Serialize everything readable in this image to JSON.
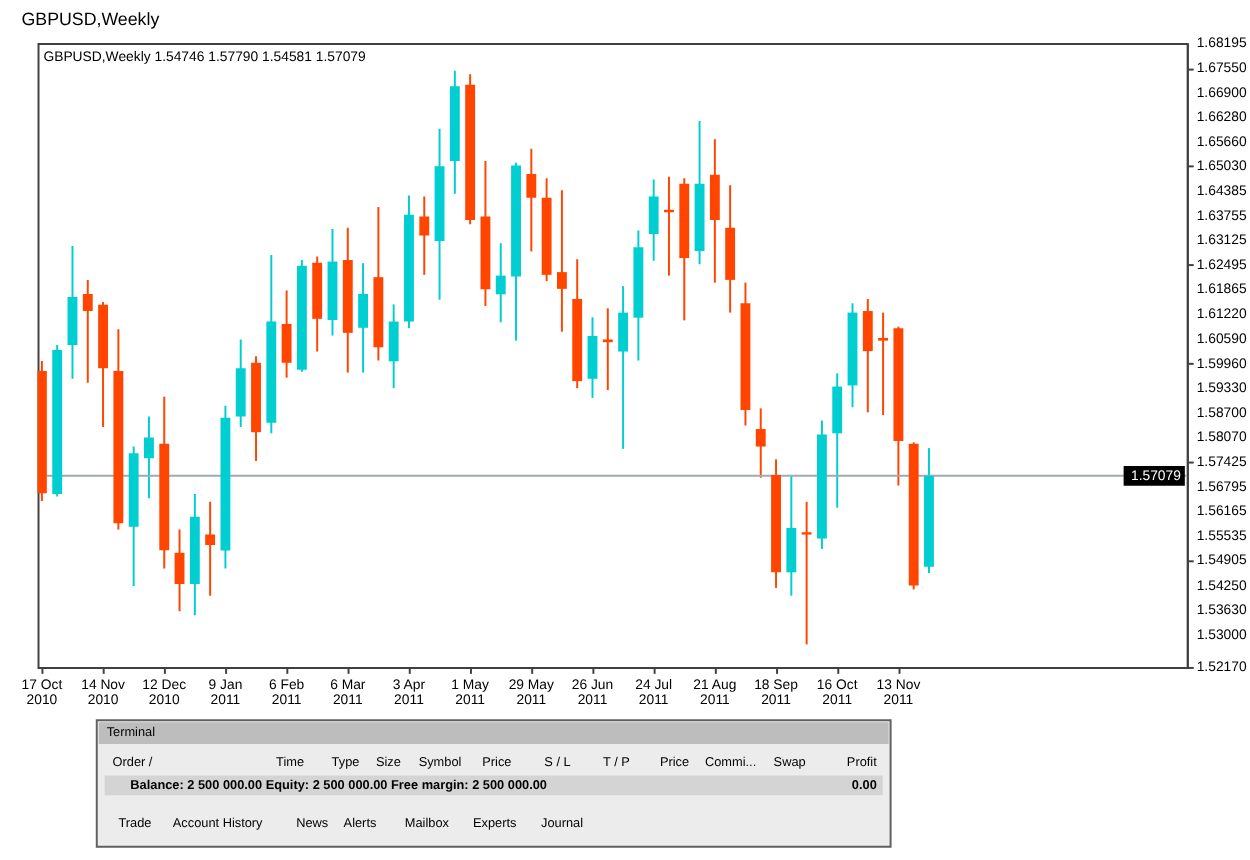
{
  "chart_data": {
    "type": "candlestick",
    "title": "GBPUSD,Weekly",
    "subtitle": "GBPUSD,Weekly  1.54746 1.57790 1.54581 1.57079",
    "x": [
      "2010-10-17",
      "2010-10-24",
      "2010-10-31",
      "2010-11-07",
      "2010-11-14",
      "2010-11-21",
      "2010-11-28",
      "2010-12-05",
      "2010-12-12",
      "2010-12-19",
      "2010-12-26",
      "2011-01-02",
      "2011-01-09",
      "2011-01-16",
      "2011-01-23",
      "2011-01-30",
      "2011-02-06",
      "2011-02-13",
      "2011-02-20",
      "2011-02-27",
      "2011-03-06",
      "2011-03-13",
      "2011-03-20",
      "2011-03-27",
      "2011-04-03",
      "2011-04-10",
      "2011-04-17",
      "2011-04-24",
      "2011-05-01",
      "2011-05-08",
      "2011-05-15",
      "2011-05-22",
      "2011-05-29",
      "2011-06-05",
      "2011-06-12",
      "2011-06-19",
      "2011-06-26",
      "2011-07-03",
      "2011-07-10",
      "2011-07-17",
      "2011-07-24",
      "2011-07-31",
      "2011-08-07",
      "2011-08-14",
      "2011-08-21",
      "2011-08-28",
      "2011-09-04",
      "2011-09-11",
      "2011-09-18",
      "2011-09-25",
      "2011-10-02",
      "2011-10-09",
      "2011-10-16",
      "2011-10-23",
      "2011-10-30",
      "2011-11-06",
      "2011-11-13",
      "2011-11-20",
      "2011-11-27"
    ],
    "ohlc": [
      [
        1.5977,
        1.6003,
        1.5643,
        1.5663
      ],
      [
        1.5661,
        1.6044,
        1.5655,
        1.6031
      ],
      [
        1.6044,
        1.6298,
        1.5957,
        1.6167
      ],
      [
        1.6175,
        1.6211,
        1.5947,
        1.6131
      ],
      [
        1.6147,
        1.6154,
        1.5833,
        1.5984
      ],
      [
        1.5977,
        1.6084,
        1.557,
        1.5586
      ],
      [
        1.5577,
        1.5783,
        1.5425,
        1.5766
      ],
      [
        1.5753,
        1.586,
        1.565,
        1.5806
      ],
      [
        1.579,
        1.5911,
        1.547,
        1.5517
      ],
      [
        1.551,
        1.557,
        1.536,
        1.543
      ],
      [
        1.543,
        1.5661,
        1.535,
        1.5603
      ],
      [
        1.5557,
        1.5641,
        1.54,
        1.553
      ],
      [
        1.5516,
        1.5888,
        1.547,
        1.5857
      ],
      [
        1.586,
        1.6058,
        1.5833,
        1.5984
      ],
      [
        1.5998,
        1.6015,
        1.5746,
        1.582
      ],
      [
        1.5844,
        1.6275,
        1.5817,
        1.6104
      ],
      [
        1.6098,
        1.6184,
        1.596,
        1.5998
      ],
      [
        1.598,
        1.6262,
        1.5975,
        1.6247
      ],
      [
        1.6255,
        1.6271,
        1.6027,
        1.6111
      ],
      [
        1.6108,
        1.6342,
        1.6068,
        1.6258
      ],
      [
        1.6262,
        1.6345,
        1.5973,
        1.6075
      ],
      [
        1.6088,
        1.6254,
        1.5973,
        1.6175
      ],
      [
        1.6218,
        1.6398,
        1.6004,
        1.6038
      ],
      [
        1.6002,
        1.6148,
        1.5933,
        1.6104
      ],
      [
        1.6104,
        1.6428,
        1.6087,
        1.6378
      ],
      [
        1.6374,
        1.6425,
        1.6224,
        1.6325
      ],
      [
        1.6311,
        1.6599,
        1.616,
        1.6503
      ],
      [
        1.6516,
        1.6748,
        1.6432,
        1.6708
      ],
      [
        1.6712,
        1.6739,
        1.6354,
        1.6365
      ],
      [
        1.6374,
        1.6516,
        1.6144,
        1.6187
      ],
      [
        1.6174,
        1.6305,
        1.6102,
        1.6222
      ],
      [
        1.622,
        1.6512,
        1.6055,
        1.6505
      ],
      [
        1.6483,
        1.6548,
        1.6284,
        1.6422
      ],
      [
        1.6422,
        1.6472,
        1.6208,
        1.6224
      ],
      [
        1.6231,
        1.6441,
        1.6078,
        1.6188
      ],
      [
        1.6162,
        1.6264,
        1.5933,
        1.5951
      ],
      [
        1.5957,
        1.6115,
        1.5908,
        1.6067
      ],
      [
        1.6058,
        1.6138,
        1.5928,
        1.6051
      ],
      [
        1.6027,
        1.6195,
        1.5777,
        1.6127
      ],
      [
        1.6114,
        1.6338,
        1.6004,
        1.6295
      ],
      [
        1.6329,
        1.6469,
        1.626,
        1.6425
      ],
      [
        1.6391,
        1.6476,
        1.6222,
        1.6385
      ],
      [
        1.6458,
        1.6472,
        1.6107,
        1.6267
      ],
      [
        1.6285,
        1.6619,
        1.6251,
        1.6458
      ],
      [
        1.6481,
        1.6572,
        1.6204,
        1.6365
      ],
      [
        1.6345,
        1.6454,
        1.6127,
        1.6211
      ],
      [
        1.6151,
        1.6204,
        1.5837,
        1.5877
      ],
      [
        1.5828,
        1.5881,
        1.5703,
        1.5783
      ],
      [
        1.571,
        1.575,
        1.542,
        1.546
      ],
      [
        1.546,
        1.571,
        1.54,
        1.5574
      ],
      [
        1.5563,
        1.5641,
        1.5275,
        1.5557
      ],
      [
        1.5547,
        1.585,
        1.552,
        1.5814
      ],
      [
        1.5817,
        1.5971,
        1.5626,
        1.5937
      ],
      [
        1.594,
        1.6151,
        1.5884,
        1.6127
      ],
      [
        1.6131,
        1.6162,
        1.5871,
        1.6028
      ],
      [
        1.6062,
        1.6127,
        1.5864,
        1.6055
      ],
      [
        1.6087,
        1.6091,
        1.5683,
        1.5797
      ],
      [
        1.579,
        1.5794,
        1.5416,
        1.5426
      ],
      [
        1.54746,
        1.5779,
        1.54581,
        1.57079
      ]
    ],
    "colors": [
      "#ff4500",
      "#00ced1",
      "#00ced1",
      "#ff4500",
      "#ff4500",
      "#ff4500",
      "#00ced1",
      "#00ced1",
      "#ff4500",
      "#ff4500",
      "#00ced1",
      "#ff4500",
      "#00ced1",
      "#00ced1",
      "#ff4500",
      "#00ced1",
      "#ff4500",
      "#00ced1",
      "#ff4500",
      "#00ced1",
      "#ff4500",
      "#00ced1",
      "#ff4500",
      "#00ced1",
      "#00ced1",
      "#ff4500",
      "#00ced1",
      "#00ced1",
      "#ff4500",
      "#ff4500",
      "#00ced1",
      "#00ced1",
      "#ff4500",
      "#ff4500",
      "#ff4500",
      "#ff4500",
      "#00ced1",
      "#ff4500",
      "#00ced1",
      "#00ced1",
      "#00ced1",
      "#ff4500",
      "#ff4500",
      "#00ced1",
      "#ff4500",
      "#ff4500",
      "#ff4500",
      "#ff4500",
      "#ff4500",
      "#00ced1",
      "#ff4500",
      "#00ced1",
      "#00ced1",
      "#00ced1",
      "#ff4500",
      "#ff4500",
      "#ff4500",
      "#ff4500",
      "#00ced1"
    ],
    "xlim": [
      "2010-10-15",
      "2012-03-24"
    ],
    "xticks": [
      {
        "value": "2010-10-17",
        "label": "17 Oct 2010"
      },
      {
        "value": "2010-11-14",
        "label": "14 Nov 2010"
      },
      {
        "value": "2010-12-12",
        "label": "12 Dec 2010"
      },
      {
        "value": "2011-01-09",
        "label": "9 Jan 2011"
      },
      {
        "value": "2011-02-06",
        "label": "6 Feb 2011"
      },
      {
        "value": "2011-03-06",
        "label": "6 Mar 2011"
      },
      {
        "value": "2011-04-03",
        "label": "3 Apr 2011"
      },
      {
        "value": "2011-05-01",
        "label": "1 May 2011"
      },
      {
        "value": "2011-05-29",
        "label": "29 May 2011"
      },
      {
        "value": "2011-06-26",
        "label": "26 Jun 2011"
      },
      {
        "value": "2011-07-24",
        "label": "24 Jul 2011"
      },
      {
        "value": "2011-08-21",
        "label": "21 Aug 2011"
      },
      {
        "value": "2011-09-18",
        "label": "18 Sep 2011"
      },
      {
        "value": "2011-10-16",
        "label": "16 Oct 2011"
      },
      {
        "value": "2011-11-13",
        "label": "13 Nov 2011"
      }
    ],
    "ylim": [
      1.5217,
      1.68195
    ],
    "yticks": [
      1.68195,
      {
        "value": 1.6755,
        "label": "1.67550"
      },
      {
        "value": 1.669,
        "label": "1.66900"
      },
      {
        "value": 1.6628,
        "label": "1.66280"
      },
      {
        "value": 1.6566,
        "label": "1.65660"
      },
      {
        "value": 1.6503,
        "label": "1.65030"
      },
      1.64385,
      1.63755,
      1.63125,
      1.62495,
      1.61865,
      {
        "value": 1.6122,
        "label": "1.61220"
      },
      {
        "value": 1.6059,
        "label": "1.60590"
      },
      {
        "value": 1.5996,
        "label": "1.59960"
      },
      {
        "value": 1.5933,
        "label": "1.59330"
      },
      {
        "value": 1.587,
        "label": "1.58700"
      },
      {
        "value": 1.5807,
        "label": "1.58070"
      },
      1.57425,
      1.56795,
      1.56165,
      1.55535,
      1.54905,
      {
        "value": 1.5425,
        "label": "1.54250"
      },
      {
        "value": 1.5363,
        "label": "1.53630"
      },
      {
        "value": 1.53,
        "label": "1.53000"
      },
      {
        "value": 1.5217,
        "label": "1.52170"
      }
    ],
    "ref_lines": [
      {
        "axis": "y",
        "value": 1.57079,
        "label": "1.57079",
        "color": "#a0aab4"
      }
    ],
    "annotations": [
      "Terminal",
      "Order /",
      "Time",
      "Type",
      "Size",
      "Symbol",
      "Price",
      "S / L",
      "T / P",
      "Price",
      "Commi...",
      "Swap",
      "Profit",
      "Balance: 2 500 000.00 Equity: 2 500 000.00 Free margin: 2 500 000.00",
      "0.00",
      "Trade",
      "Account History",
      "News",
      "Alerts",
      "Mailbox",
      "Experts",
      "Journal"
    ]
  }
}
